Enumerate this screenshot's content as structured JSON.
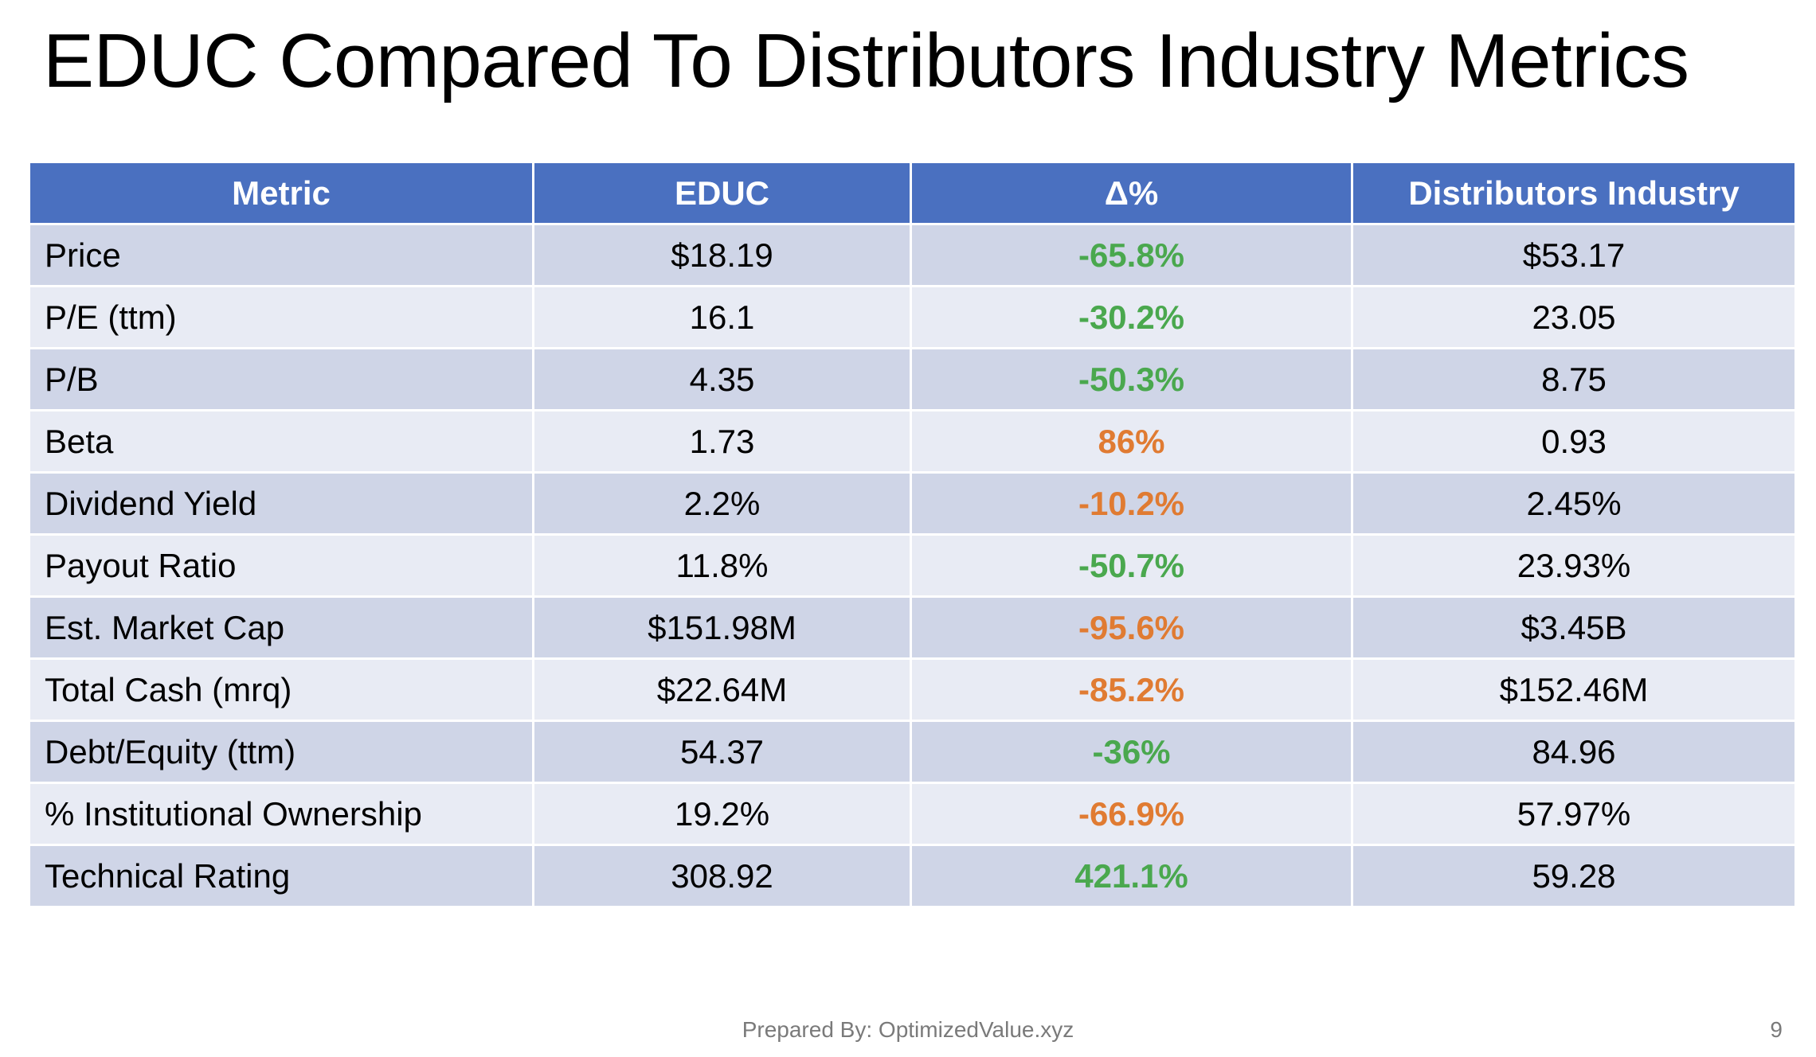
{
  "slide": {
    "title": "EDUC Compared To Distributors Industry Metrics",
    "footer": "Prepared By: OptimizedValue.xyz",
    "page_number": "9"
  },
  "colors": {
    "header_bg": "#4a70c0",
    "row_odd_bg": "#cfd5e7",
    "row_even_bg": "#e8ebf4",
    "delta_good": "#4aa84e",
    "delta_bad": "#e07b32"
  },
  "table": {
    "headers": [
      "Metric",
      "EDUC",
      "Δ%",
      "Distributors Industry"
    ],
    "rows": [
      {
        "metric": "Price",
        "educ": "$18.19",
        "delta": "-65.8%",
        "delta_status": "good",
        "industry": "$53.17"
      },
      {
        "metric": "P/E (ttm)",
        "educ": "16.1",
        "delta": "-30.2%",
        "delta_status": "good",
        "industry": "23.05"
      },
      {
        "metric": "P/B",
        "educ": "4.35",
        "delta": "-50.3%",
        "delta_status": "good",
        "industry": "8.75"
      },
      {
        "metric": "Beta",
        "educ": "1.73",
        "delta": "86%",
        "delta_status": "bad",
        "industry": "0.93"
      },
      {
        "metric": "Dividend Yield",
        "educ": "2.2%",
        "delta": "-10.2%",
        "delta_status": "bad",
        "industry": "2.45%"
      },
      {
        "metric": "Payout Ratio",
        "educ": "11.8%",
        "delta": "-50.7%",
        "delta_status": "good",
        "industry": "23.93%"
      },
      {
        "metric": "Est. Market Cap",
        "educ": "$151.98M",
        "delta": "-95.6%",
        "delta_status": "bad",
        "industry": "$3.45B"
      },
      {
        "metric": "Total Cash (mrq)",
        "educ": "$22.64M",
        "delta": "-85.2%",
        "delta_status": "bad",
        "industry": "$152.46M"
      },
      {
        "metric": "Debt/Equity (ttm)",
        "educ": "54.37",
        "delta": "-36%",
        "delta_status": "good",
        "industry": "84.96"
      },
      {
        "metric": "% Institutional Ownership",
        "educ": "19.2%",
        "delta": "-66.9%",
        "delta_status": "bad",
        "industry": "57.97%"
      },
      {
        "metric": "Technical Rating",
        "educ": "308.92",
        "delta": "421.1%",
        "delta_status": "good",
        "industry": "59.28"
      }
    ]
  }
}
